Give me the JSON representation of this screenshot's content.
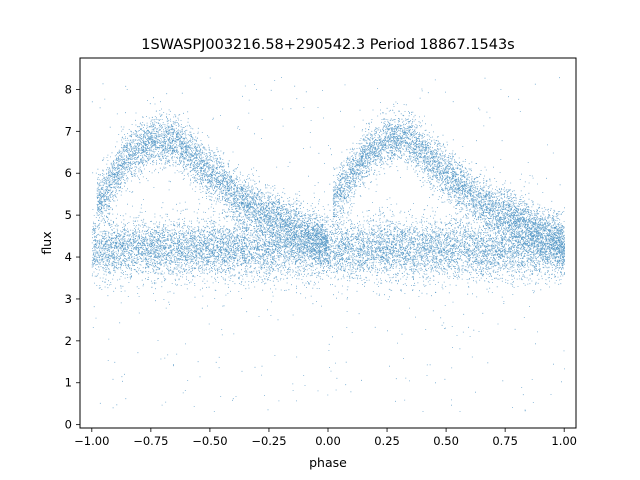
{
  "chart_data": {
    "type": "scatter",
    "title": "1SWASPJ003216.58+290542.3 Period 18867.1543s",
    "xlabel": "phase",
    "ylabel": "flux",
    "xlim": [
      -1.05,
      1.05
    ],
    "ylim": [
      -0.08,
      8.75
    ],
    "x_ticks": [
      -1.0,
      -0.75,
      -0.5,
      -0.25,
      0.0,
      0.25,
      0.5,
      0.75,
      1.0
    ],
    "x_tick_labels": [
      "−1.00",
      "−0.75",
      "−0.50",
      "−0.25",
      "0.00",
      "0.25",
      "0.50",
      "0.75",
      "1.00"
    ],
    "y_ticks": [
      0,
      1,
      2,
      3,
      4,
      5,
      6,
      7,
      8
    ],
    "y_tick_labels": [
      "0",
      "1",
      "2",
      "3",
      "4",
      "5",
      "6",
      "7",
      "8"
    ],
    "grid": false,
    "legend": "none",
    "marker_color": "#1f77b4",
    "phase_period": 1.0,
    "series": [
      {
        "component": "baseline-band",
        "description_values": {
          "center_flux": 4.2,
          "spread_low": 3.5,
          "spread_high": 5.2
        },
        "x_range": [
          -1.0,
          1.0
        ]
      },
      {
        "component": "upper-sawtooth-branch",
        "x": [
          -0.98,
          -0.85,
          -0.75,
          -0.65,
          -0.5,
          -0.35,
          -0.2,
          -0.1,
          0.0
        ],
        "y": [
          5.3,
          6.4,
          6.8,
          6.8,
          6.0,
          5.3,
          4.9,
          4.6,
          4.3
        ]
      },
      {
        "component": "upper-sawtooth-branch-repeat",
        "x": [
          0.02,
          0.15,
          0.25,
          0.35,
          0.5,
          0.65,
          0.8,
          0.9,
          1.0
        ],
        "y": [
          5.3,
          6.4,
          6.8,
          6.8,
          6.0,
          5.3,
          4.9,
          4.6,
          4.3
        ]
      },
      {
        "component": "sparse-outliers",
        "y_range": [
          0.3,
          8.3
        ]
      }
    ]
  }
}
